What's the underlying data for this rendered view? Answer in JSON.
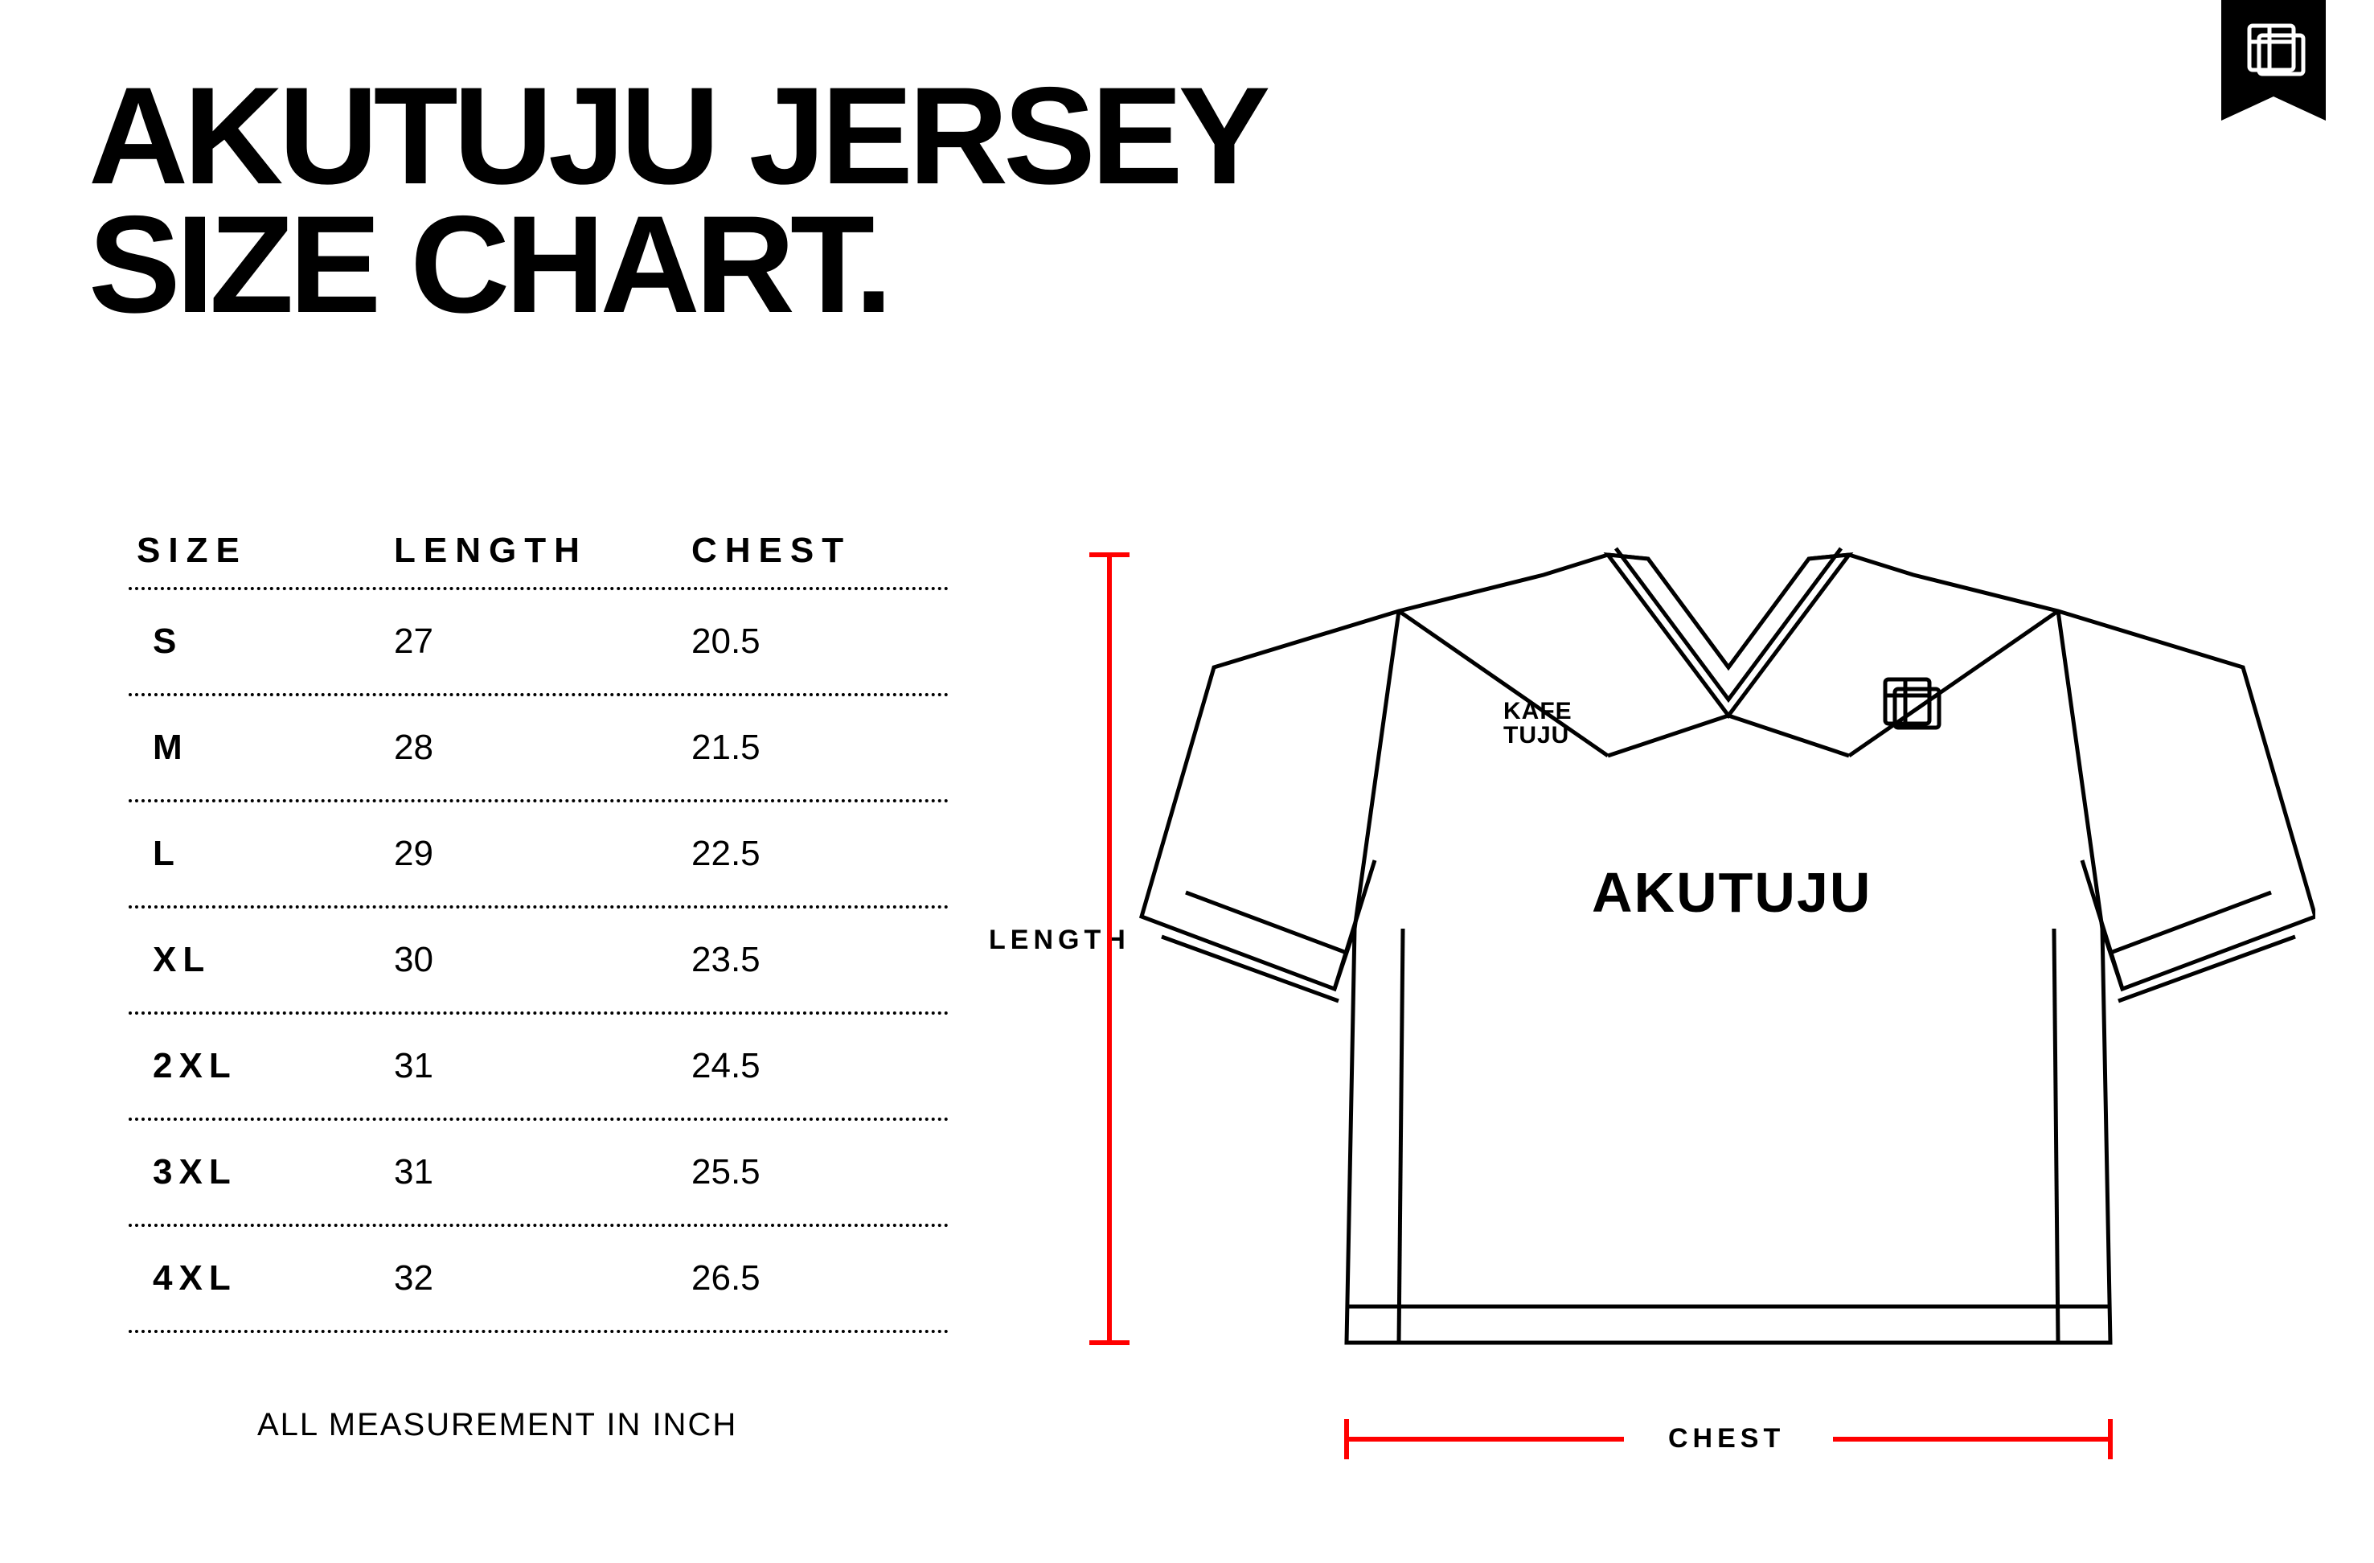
{
  "title_line1": "AKUTUJU JERSEY",
  "title_line2": "SIZE CHART.",
  "table": {
    "columns": [
      "SIZE",
      "LENGTH",
      "CHEST"
    ],
    "rows": [
      {
        "size": "S",
        "length": "27",
        "chest": "20.5"
      },
      {
        "size": "M",
        "length": "28",
        "chest": "21.5"
      },
      {
        "size": "L",
        "length": "29",
        "chest": "22.5"
      },
      {
        "size": "XL",
        "length": "30",
        "chest": "23.5"
      },
      {
        "size": "2XL",
        "length": "31",
        "chest": "24.5"
      },
      {
        "size": "3XL",
        "length": "31",
        "chest": "25.5"
      },
      {
        "size": "4XL",
        "length": "32",
        "chest": "26.5"
      }
    ],
    "header_fontsize": 44,
    "row_fontsize": 44,
    "border_style": "dotted",
    "border_color": "#000000"
  },
  "footnote": "ALL MEASUREMENT IN INCH",
  "diagram": {
    "length_label": "LENGTH",
    "chest_label": "CHEST",
    "brand_text": "AKUTUJU",
    "sponsor_line1": "KAFE",
    "sponsor_line2": "TUJU",
    "ruler_color": "#ff0000",
    "ruler_stroke_width": 6,
    "jersey_stroke": "#000000",
    "jersey_fill": "#ffffff",
    "jersey_stroke_width": 5
  },
  "colors": {
    "background": "#ffffff",
    "text": "#000000",
    "accent": "#ff0000"
  },
  "ribbon": {
    "bg": "#000000",
    "logo_color": "#ffffff"
  }
}
